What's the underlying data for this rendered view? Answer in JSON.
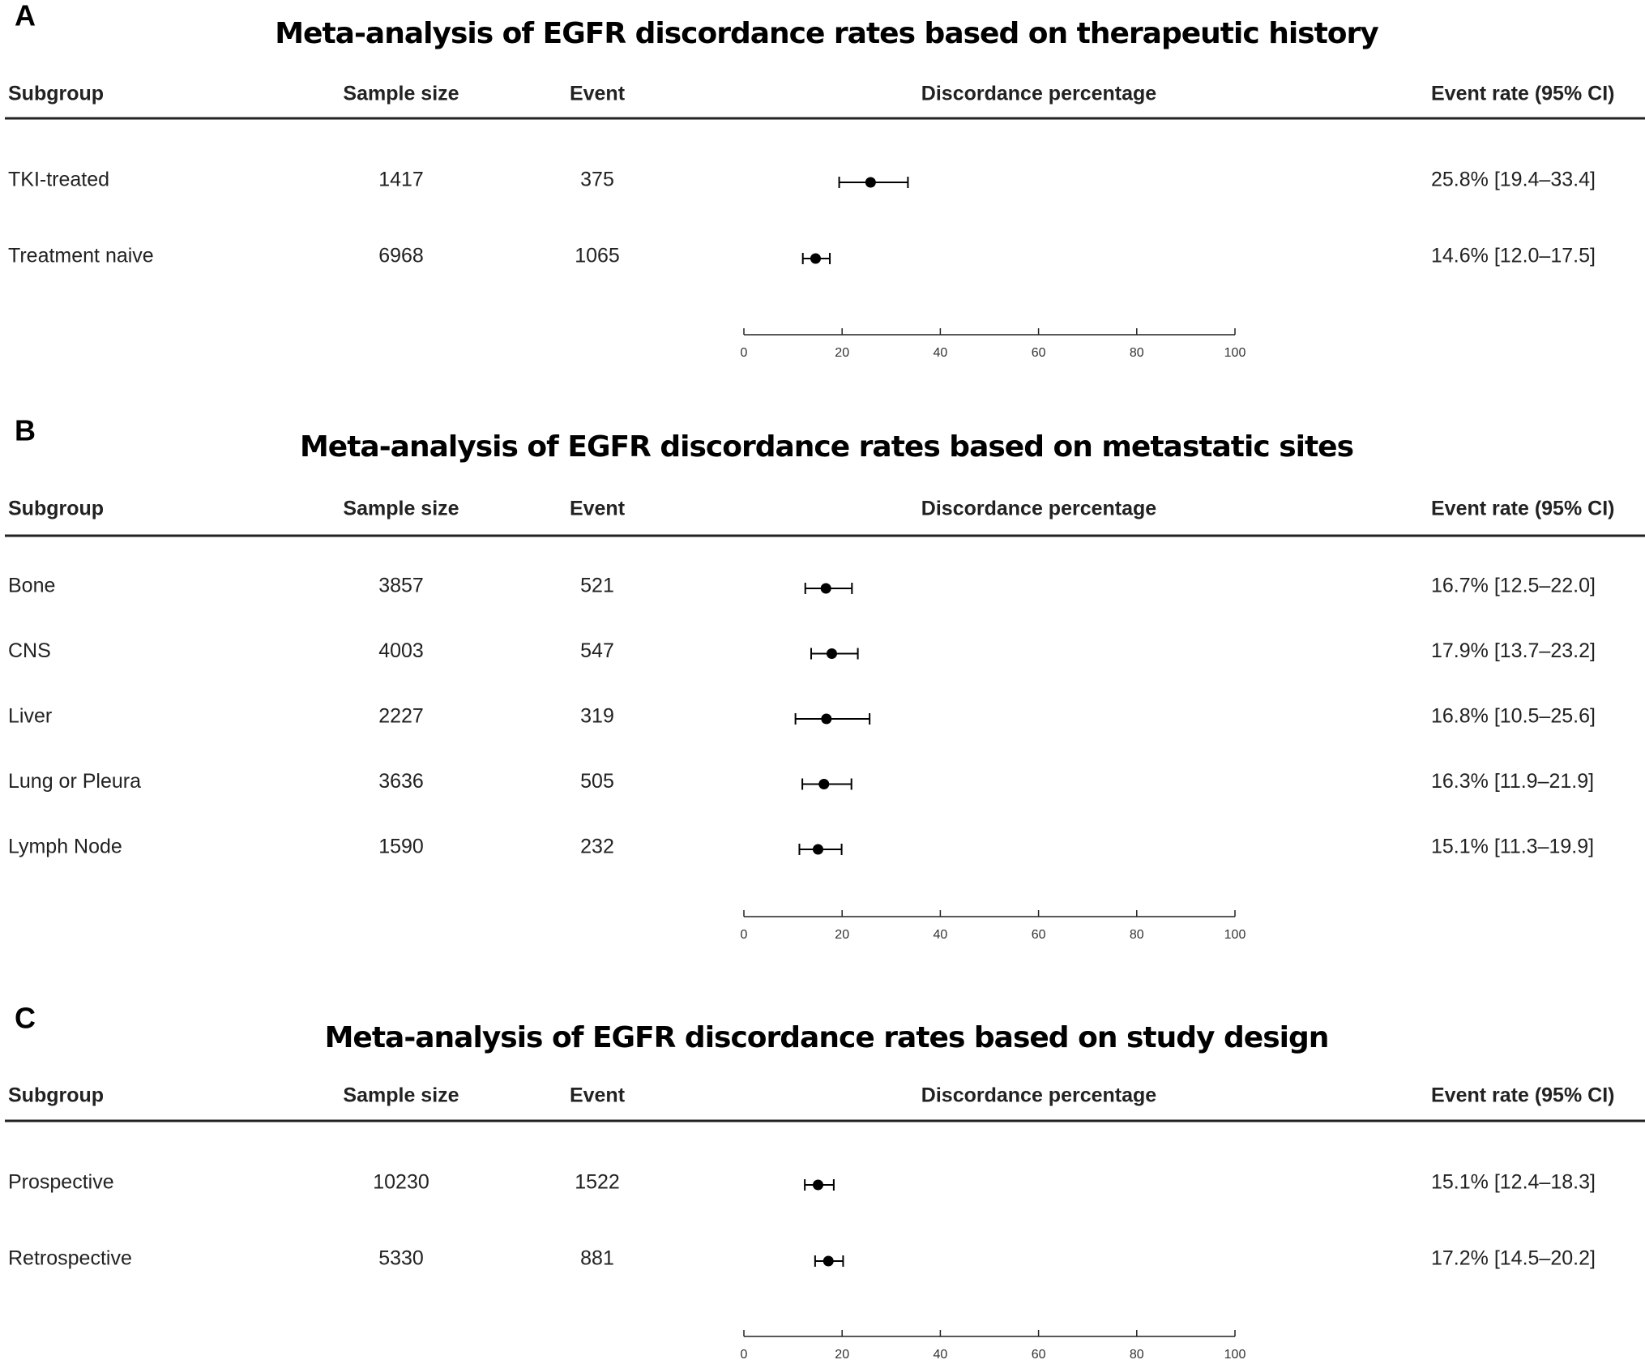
{
  "chart_data": [
    {
      "type": "forest",
      "panel": "A",
      "title": "Meta-analysis of EGFR discordance rates based on therapeutic history",
      "columns": [
        "Subgroup",
        "Sample size",
        "Event",
        "Discordance percentage",
        "Event rate (95% CI)"
      ],
      "categories": [
        "TKI-treated",
        "Treatment naive"
      ],
      "sample_size": [
        1417,
        6968
      ],
      "event": [
        375,
        1065
      ],
      "values": [
        25.8,
        14.6
      ],
      "lower": [
        19.4,
        12.0
      ],
      "upper": [
        33.4,
        17.5
      ],
      "value_labels": [
        "25.8% [19.4–33.4]",
        "14.6% [12.0–17.5]"
      ],
      "xlim": [
        0,
        100
      ],
      "xticks": [
        0,
        20,
        40,
        60,
        80,
        100
      ],
      "color": "#000000"
    },
    {
      "type": "forest",
      "panel": "B",
      "title": "Meta-analysis of EGFR discordance rates based on metastatic sites",
      "columns": [
        "Subgroup",
        "Sample size",
        "Event",
        "Discordance percentage",
        "Event rate (95% CI)"
      ],
      "categories": [
        "Bone",
        "CNS",
        "Liver",
        "Lung or Pleura",
        "Lymph Node"
      ],
      "sample_size": [
        3857,
        4003,
        2227,
        3636,
        1590
      ],
      "event": [
        521,
        547,
        319,
        505,
        232
      ],
      "values": [
        16.7,
        17.9,
        16.8,
        16.3,
        15.1
      ],
      "lower": [
        12.5,
        13.7,
        10.5,
        11.9,
        11.3
      ],
      "upper": [
        22.0,
        23.2,
        25.6,
        21.9,
        19.9
      ],
      "value_labels": [
        "16.7% [12.5–22.0]",
        "17.9% [13.7–23.2]",
        "16.8% [10.5–25.6]",
        "16.3% [11.9–21.9]",
        "15.1% [11.3–19.9]"
      ],
      "xlim": [
        0,
        100
      ],
      "xticks": [
        0,
        20,
        40,
        60,
        80,
        100
      ],
      "color": "#000000"
    },
    {
      "type": "forest",
      "panel": "C",
      "title": "Meta-analysis of EGFR discordance rates based on study design",
      "columns": [
        "Subgroup",
        "Sample size",
        "Event",
        "Discordance percentage",
        "Event rate (95% CI)"
      ],
      "categories": [
        "Prospective",
        "Retrospective"
      ],
      "sample_size": [
        10230,
        5330
      ],
      "event": [
        1522,
        881
      ],
      "values": [
        15.1,
        17.2
      ],
      "lower": [
        12.4,
        14.5
      ],
      "upper": [
        18.3,
        20.2
      ],
      "value_labels": [
        "15.1% [12.4–18.3]",
        "17.2% [14.5–20.2]"
      ],
      "xlim": [
        0,
        100
      ],
      "xticks": [
        0,
        20,
        40,
        60,
        80,
        100
      ],
      "color": "#000000"
    }
  ]
}
